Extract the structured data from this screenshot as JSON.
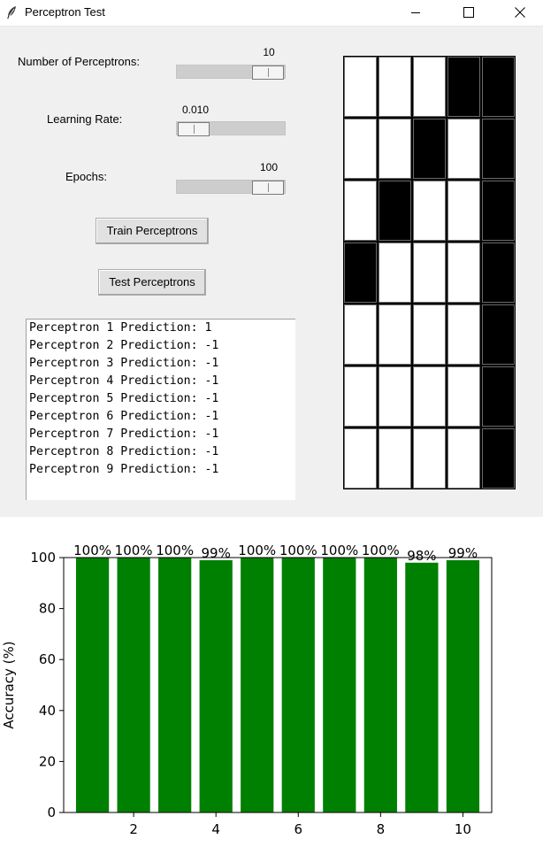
{
  "window": {
    "title": "Perceptron Test",
    "icon": "feather-icon",
    "controls": [
      "minimize-icon",
      "maximize-icon",
      "close-icon"
    ]
  },
  "controls": {
    "perceptrons_label": "Number of Perceptrons:",
    "perceptrons_value": "10",
    "perceptrons_fraction": 1.0,
    "learning_rate_label": "Learning Rate:",
    "learning_rate_value": "0.010",
    "learning_rate_fraction": 0.0,
    "epochs_label": "Epochs:",
    "epochs_value": "100",
    "epochs_fraction": 1.0,
    "train_button": "Train Perceptrons",
    "test_button": "Test Perceptrons"
  },
  "output_lines": [
    "Perceptron 1 Prediction: 1",
    "Perceptron 2 Prediction: -1",
    "Perceptron 3 Prediction: -1",
    "Perceptron 4 Prediction: -1",
    "Perceptron 5 Prediction: -1",
    "Perceptron 6 Prediction: -1",
    "Perceptron 7 Prediction: -1",
    "Perceptron 8 Prediction: -1",
    "Perceptron 9 Prediction: -1"
  ],
  "pixel_grid": {
    "rows": 7,
    "cols": 5,
    "cells": [
      [
        0,
        0,
        0,
        1,
        1
      ],
      [
        0,
        0,
        1,
        0,
        1
      ],
      [
        0,
        1,
        0,
        0,
        1
      ],
      [
        1,
        0,
        0,
        0,
        1
      ],
      [
        0,
        0,
        0,
        0,
        1
      ],
      [
        0,
        0,
        0,
        0,
        1
      ],
      [
        0,
        0,
        0,
        0,
        1
      ]
    ],
    "on_color": "#000000",
    "off_color": "#ffffff"
  },
  "chart_data": {
    "type": "bar",
    "x": [
      1,
      2,
      3,
      4,
      5,
      6,
      7,
      8,
      9,
      10
    ],
    "values": [
      100,
      100,
      100,
      99,
      100,
      100,
      100,
      100,
      98,
      99
    ],
    "data_labels": [
      "100%",
      "100%",
      "100%",
      "99%",
      "100%",
      "100%",
      "100%",
      "100%",
      "98%",
      "99%"
    ],
    "xlabel": "",
    "ylabel": "Accuracy (%)",
    "ylim": [
      0,
      100
    ],
    "xticks": [
      2,
      4,
      6,
      8,
      10
    ],
    "yticks": [
      0,
      20,
      40,
      60,
      80,
      100
    ],
    "bar_color": "#008000",
    "grid": false,
    "legend": "none"
  }
}
